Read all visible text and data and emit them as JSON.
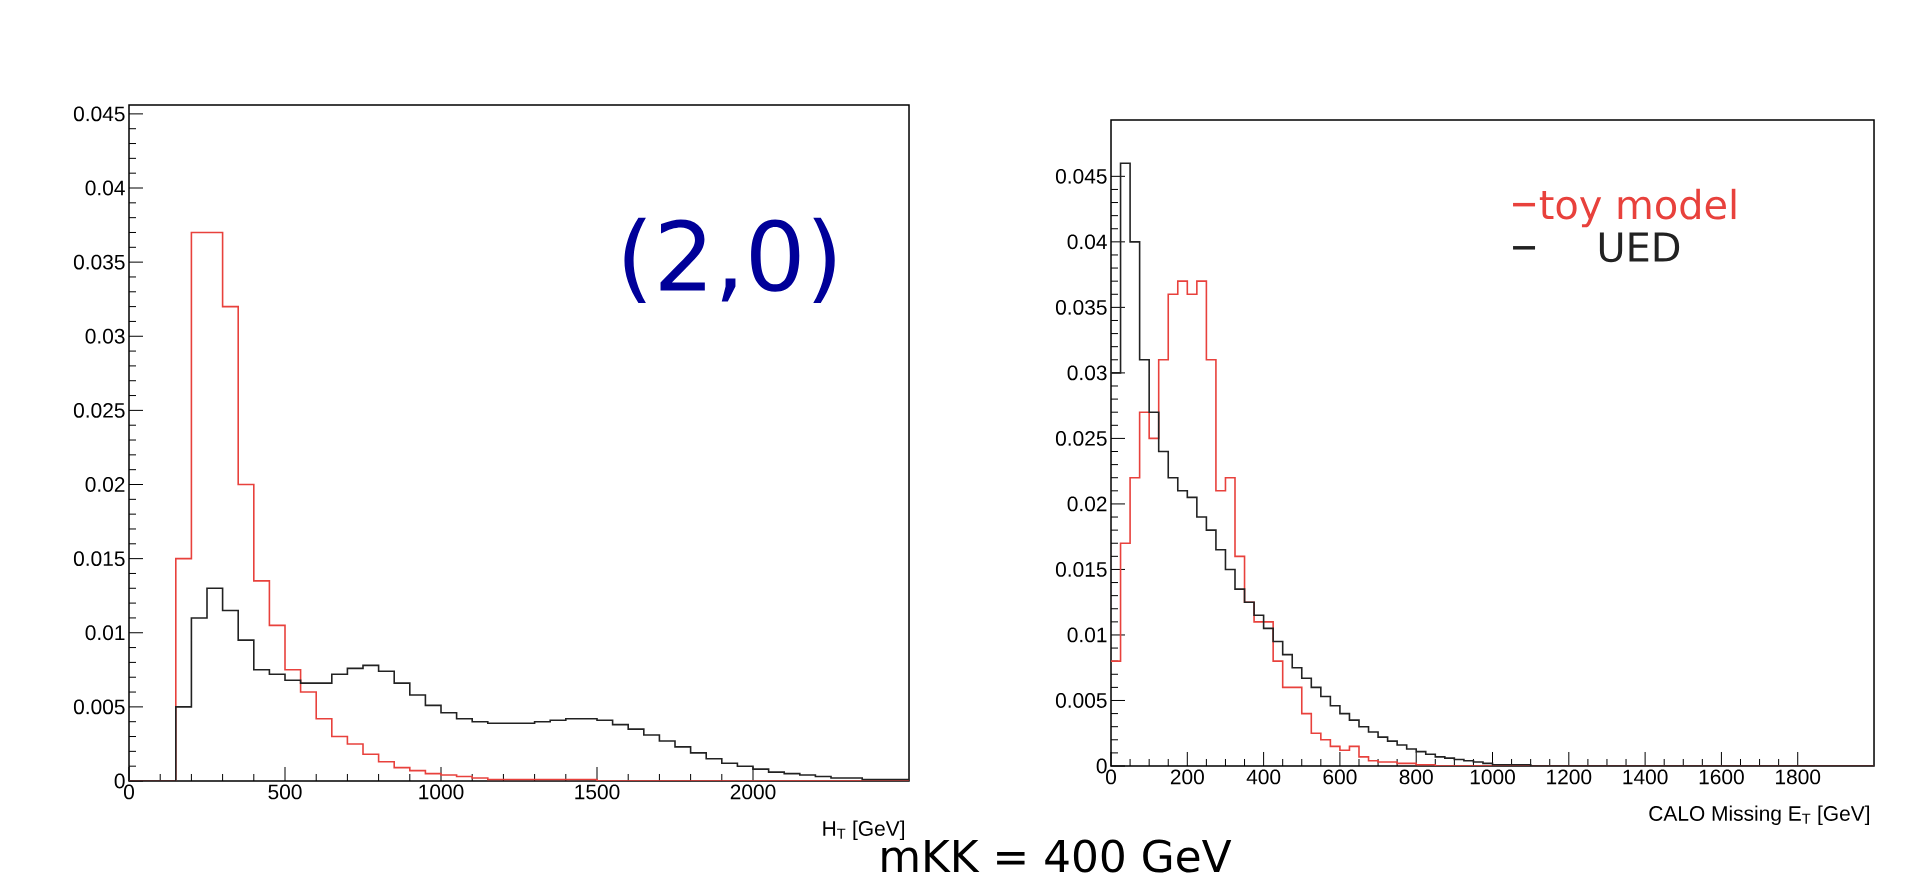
{
  "chart_data": [
    {
      "type": "histogram",
      "xlabel": "H$_{T}$ [GeV]",
      "annotations": [
        "(2,0)"
      ],
      "bins": [
        0,
        50,
        100,
        150,
        200,
        250,
        300,
        350,
        400,
        450,
        500,
        550,
        600,
        650,
        700,
        750,
        800,
        850,
        900,
        950,
        1000,
        1050,
        1100,
        1150,
        1200,
        1250,
        1300,
        1350,
        1400,
        1450,
        1500,
        1550,
        1600,
        1650,
        1700,
        1750,
        1800,
        1850,
        1900,
        1950,
        2000,
        2050,
        2100,
        2150,
        2200,
        2250,
        2300,
        2350,
        2400,
        2450,
        2500
      ],
      "series": [
        {
          "color": "#e8413c",
          "values": [
            0,
            0,
            0,
            0.015,
            0.037,
            0.037,
            0.032,
            0.02,
            0.0135,
            0.0105,
            0.0075,
            0.006,
            0.0042,
            0.003,
            0.0025,
            0.0018,
            0.0013,
            0.0009,
            0.0007,
            0.0005,
            0.0004,
            0.0003,
            0.0002,
            0.0001,
            0.0001,
            0.0001,
            0.0001,
            0.0001,
            0.0001,
            0.0001,
            0,
            0,
            0,
            0,
            0,
            0,
            0,
            0,
            0,
            0,
            0,
            0,
            0,
            0,
            0,
            0,
            0,
            0,
            0,
            0
          ]
        },
        {
          "color": "#222222",
          "values": [
            0,
            0,
            0,
            0.005,
            0.011,
            0.013,
            0.0115,
            0.0095,
            0.0075,
            0.0072,
            0.0068,
            0.0066,
            0.0066,
            0.0072,
            0.0076,
            0.0078,
            0.0074,
            0.0066,
            0.0058,
            0.0051,
            0.0046,
            0.0042,
            0.004,
            0.0039,
            0.0039,
            0.0039,
            0.004,
            0.0041,
            0.0042,
            0.0042,
            0.0041,
            0.0038,
            0.0035,
            0.0031,
            0.0027,
            0.0023,
            0.0019,
            0.0015,
            0.0012,
            0.001,
            0.0008,
            0.0006,
            0.0005,
            0.0004,
            0.0003,
            0.0002,
            0.0002,
            0.0001,
            0.0001,
            0.0001
          ]
        }
      ],
      "xlim": [
        0,
        2500
      ],
      "xticks": [
        0,
        500,
        1000,
        1500,
        2000
      ],
      "ylim": [
        0,
        0.0456
      ],
      "yticks": [
        0,
        0.005,
        0.01,
        0.015,
        0.02,
        0.025,
        0.03,
        0.035,
        0.04,
        0.045
      ]
    },
    {
      "type": "histogram",
      "xlabel": "CALO Missing E$_{T}$ [GeV]",
      "annotations": [
        "mKK = 400 GeV"
      ],
      "legend": "top right",
      "bins": [
        0,
        25,
        50,
        75,
        100,
        125,
        150,
        175,
        200,
        225,
        250,
        275,
        300,
        325,
        350,
        375,
        400,
        425,
        450,
        475,
        500,
        525,
        550,
        575,
        600,
        625,
        650,
        675,
        700,
        725,
        750,
        775,
        800,
        825,
        850,
        875,
        900,
        925,
        950,
        975,
        1000,
        1025,
        1050,
        1075,
        1100,
        1125,
        1150,
        1175,
        1200,
        1225,
        1250,
        1275,
        1300,
        1325,
        1350,
        1375,
        1400,
        1425,
        1450,
        1475,
        1500,
        1525,
        1550,
        1575,
        1600,
        1625,
        1650,
        1675,
        1700,
        1725,
        1750,
        1775,
        1800,
        1825,
        1850,
        1875,
        1900,
        1925,
        1950,
        1975,
        2000
      ],
      "series": [
        {
          "name": "toy model",
          "color": "#e8413c",
          "values": [
            0.008,
            0.017,
            0.022,
            0.027,
            0.025,
            0.031,
            0.036,
            0.037,
            0.036,
            0.037,
            0.031,
            0.021,
            0.022,
            0.016,
            0.0125,
            0.011,
            0.011,
            0.008,
            0.006,
            0.006,
            0.004,
            0.0025,
            0.002,
            0.0015,
            0.0012,
            0.0015,
            0.0007,
            0.0004,
            0.0003,
            0.0003,
            0.0002,
            0.0002,
            0.0001,
            0.0001,
            0,
            0,
            0,
            0,
            0,
            0,
            0,
            0,
            0,
            0,
            0,
            0,
            0,
            0,
            0,
            0,
            0,
            0,
            0,
            0,
            0,
            0,
            0,
            0,
            0,
            0,
            0,
            0,
            0,
            0,
            0,
            0,
            0,
            0,
            0,
            0,
            0,
            0,
            0,
            0,
            0,
            0,
            0,
            0,
            0,
            0
          ]
        },
        {
          "name": "UED",
          "color": "#222222",
          "values": [
            0.03,
            0.046,
            0.04,
            0.031,
            0.027,
            0.024,
            0.022,
            0.021,
            0.0205,
            0.019,
            0.018,
            0.0165,
            0.015,
            0.0135,
            0.0125,
            0.0115,
            0.0105,
            0.0095,
            0.0085,
            0.0075,
            0.0067,
            0.006,
            0.0053,
            0.0046,
            0.004,
            0.0035,
            0.003,
            0.0026,
            0.0022,
            0.0019,
            0.0016,
            0.0013,
            0.0011,
            0.0009,
            0.0007,
            0.0006,
            0.0005,
            0.0004,
            0.0003,
            0.0002,
            0.0001,
            0.0001,
            0.0001,
            0.0001,
            0,
            0,
            0,
            0,
            0,
            0,
            0,
            0,
            0,
            0,
            0,
            0,
            0,
            0,
            0,
            0,
            0,
            0,
            0,
            0,
            0,
            0,
            0,
            0,
            0,
            0,
            0,
            0,
            0,
            0,
            0,
            0,
            0,
            0,
            0,
            0
          ]
        }
      ],
      "xlim": [
        0,
        2000
      ],
      "xticks": [
        0,
        200,
        400,
        600,
        800,
        1000,
        1200,
        1400,
        1600,
        1800
      ],
      "ylim": [
        0,
        0.0493
      ],
      "yticks": [
        0,
        0.005,
        0.01,
        0.015,
        0.02,
        0.025,
        0.03,
        0.035,
        0.04,
        0.045
      ]
    }
  ]
}
